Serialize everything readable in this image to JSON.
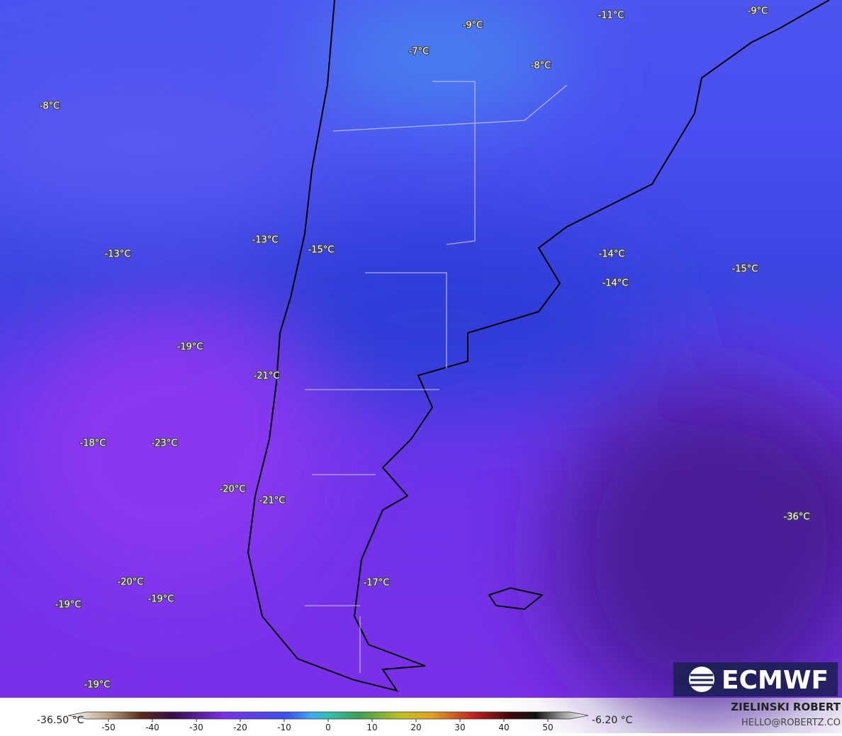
{
  "map": {
    "labels": [
      "-8°C",
      "-7°C",
      "-9°C",
      "-8°C",
      "-11°C",
      "-9°C",
      "-13°C",
      "-13°C",
      "-15°C",
      "-14°C",
      "-15°C",
      "-14°C",
      "-19°C",
      "-21°C",
      "-18°C",
      "-23°C",
      "-20°C",
      "-21°C",
      "-36°C",
      "-17°C",
      "-20°C",
      "-19°C",
      "-19°C",
      "-19°C"
    ]
  },
  "logo": "ECMWF",
  "colorbar": {
    "min_label": "-36.50 °C",
    "max_label": "-6.20 °C",
    "ticks": [
      -50,
      -40,
      -30,
      -20,
      -10,
      0,
      10,
      20,
      30,
      40,
      50
    ]
  },
  "credit": {
    "name": "ZIELINSKI ROBERT",
    "email": "HELLO@ROBERTZ.CO"
  }
}
